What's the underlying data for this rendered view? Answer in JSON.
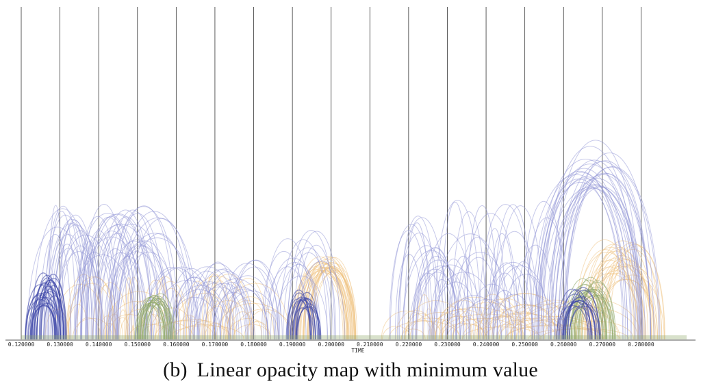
{
  "caption": {
    "tag": "(b)",
    "text": "Linear opacity map with minimum value"
  },
  "chart_data": {
    "type": "arc",
    "xlabel": "TIME",
    "xlim": [
      0.12,
      0.29
    ],
    "ticks": [
      {
        "value": 0.12,
        "label": "0.120000"
      },
      {
        "value": 0.13,
        "label": "0.130000"
      },
      {
        "value": 0.14,
        "label": "0.140000"
      },
      {
        "value": 0.15,
        "label": "0.150000"
      },
      {
        "value": 0.16,
        "label": "0.160000"
      },
      {
        "value": 0.17,
        "label": "0.170000"
      },
      {
        "value": 0.18,
        "label": "0.180000"
      },
      {
        "value": 0.19,
        "label": "0.190000"
      },
      {
        "value": 0.2,
        "label": "0.200000"
      },
      {
        "value": 0.21,
        "label": "0.210000"
      },
      {
        "value": 0.22,
        "label": "0.220000"
      },
      {
        "value": 0.23,
        "label": "0.230000"
      },
      {
        "value": 0.24,
        "label": "0.240000"
      },
      {
        "value": 0.25,
        "label": "0.250000"
      },
      {
        "value": 0.26,
        "label": "0.260000"
      },
      {
        "value": 0.27,
        "label": "0.270000"
      },
      {
        "value": 0.28,
        "label": "0.280000"
      }
    ],
    "grid": true,
    "colors": {
      "blue": "#8f93d6",
      "dark_blue": "#3d46a8",
      "orange": "#f0c27e",
      "green": "#8fa86a",
      "grid": "#333333",
      "axis": "#555555"
    },
    "groups": [
      {
        "color": "blue",
        "from_start": 0.121,
        "from_end": 0.15,
        "to_start": 0.129,
        "to_end": 0.17,
        "count": 60,
        "height": [
          0.25,
          0.41
        ]
      },
      {
        "color": "blue",
        "from_start": 0.151,
        "from_end": 0.176,
        "to_start": 0.165,
        "to_end": 0.19,
        "count": 32,
        "height": [
          0.12,
          0.24
        ]
      },
      {
        "color": "blue",
        "from_start": 0.181,
        "from_end": 0.192,
        "to_start": 0.193,
        "to_end": 0.204,
        "count": 14,
        "height": [
          0.18,
          0.33
        ]
      },
      {
        "color": "blue",
        "from_start": 0.209,
        "from_end": 0.251,
        "to_start": 0.222,
        "to_end": 0.262,
        "count": 55,
        "height": [
          0.12,
          0.42
        ]
      },
      {
        "color": "blue",
        "from_start": 0.25,
        "from_end": 0.262,
        "to_start": 0.275,
        "to_end": 0.285,
        "count": 28,
        "height": [
          0.45,
          0.6
        ]
      },
      {
        "color": "dark_blue",
        "from_start": 0.1205,
        "from_end": 0.126,
        "to_start": 0.128,
        "to_end": 0.132,
        "count": 26,
        "height": [
          0.1,
          0.2
        ]
      },
      {
        "color": "orange",
        "from_start": 0.124,
        "from_end": 0.185,
        "to_start": 0.13,
        "to_end": 0.195,
        "count": 70,
        "height": [
          0.04,
          0.2
        ]
      },
      {
        "color": "orange",
        "from_start": 0.189,
        "from_end": 0.196,
        "to_start": 0.203,
        "to_end": 0.207,
        "count": 30,
        "height": [
          0.2,
          0.25
        ]
      },
      {
        "color": "orange",
        "from_start": 0.209,
        "from_end": 0.262,
        "to_start": 0.215,
        "to_end": 0.285,
        "count": 60,
        "height": [
          0.03,
          0.14
        ]
      },
      {
        "color": "orange",
        "from_start": 0.262,
        "from_end": 0.272,
        "to_start": 0.278,
        "to_end": 0.287,
        "count": 30,
        "height": [
          0.18,
          0.3
        ]
      },
      {
        "color": "green",
        "from_start": 0.149,
        "from_end": 0.153,
        "to_start": 0.156,
        "to_end": 0.16,
        "count": 22,
        "height": [
          0.1,
          0.14
        ]
      },
      {
        "color": "green",
        "from_start": 0.26,
        "from_end": 0.265,
        "to_start": 0.269,
        "to_end": 0.274,
        "count": 22,
        "height": [
          0.12,
          0.19
        ]
      },
      {
        "color": "dark_blue",
        "from_start": 0.188,
        "from_end": 0.192,
        "to_start": 0.194,
        "to_end": 0.198,
        "count": 16,
        "height": [
          0.09,
          0.15
        ]
      },
      {
        "color": "dark_blue",
        "from_start": 0.258,
        "from_end": 0.262,
        "to_start": 0.266,
        "to_end": 0.27,
        "count": 16,
        "height": [
          0.09,
          0.16
        ]
      }
    ]
  }
}
